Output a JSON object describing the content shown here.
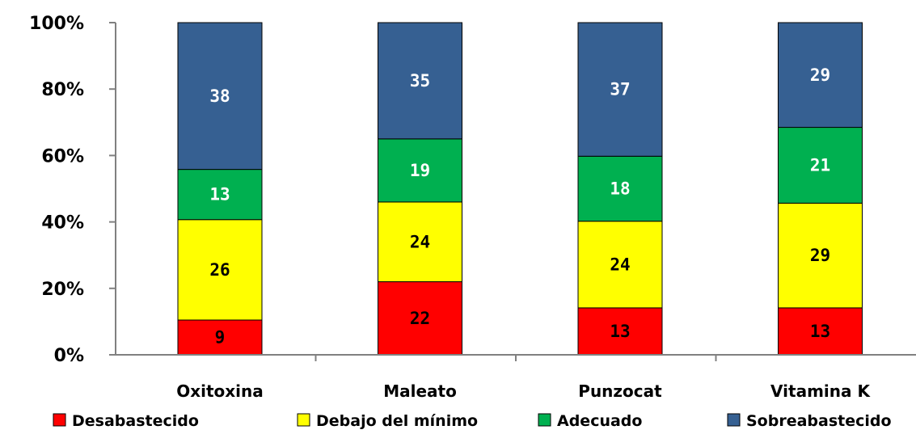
{
  "chart_data": {
    "type": "bar",
    "stacked": true,
    "percent_stacked": true,
    "categories": [
      "Oxitoxina",
      "Maleato",
      "Punzocat",
      "Vitamina K"
    ],
    "series": [
      {
        "name": "Desabastecido",
        "values": [
          9,
          22,
          13,
          13
        ],
        "color": "#ff0000",
        "label_color": "#000000"
      },
      {
        "name": "Debajo del mínimo",
        "values": [
          26,
          24,
          24,
          29
        ],
        "color": "#ffff00",
        "label_color": "#000000"
      },
      {
        "name": "Adecuado",
        "values": [
          13,
          19,
          18,
          21
        ],
        "color": "#00b050",
        "label_color": "#ffffff"
      },
      {
        "name": "Sobreabastecido",
        "values": [
          38,
          35,
          37,
          29
        ],
        "color": "#366092",
        "label_color": "#ffffff"
      }
    ],
    "ylim": [
      0,
      100
    ],
    "yticks": [
      "0%",
      "20%",
      "40%",
      "60%",
      "80%",
      "100%"
    ],
    "title": "",
    "xlabel": "",
    "ylabel": "",
    "grid": false,
    "legend_position": "bottom"
  }
}
